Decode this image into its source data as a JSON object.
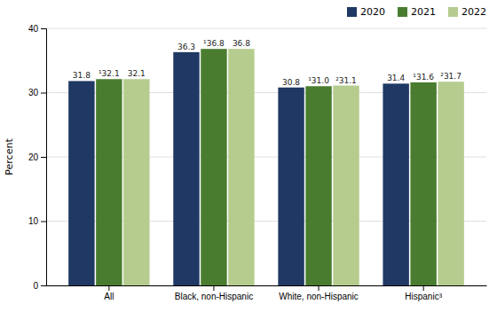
{
  "chart_data": {
    "type": "bar",
    "categories": [
      "All",
      "Black, non-Hispanic",
      "White, non-Hispanic",
      "Hispanic³"
    ],
    "series": [
      {
        "name": "2020",
        "color": "#1f3864",
        "values": [
          31.8,
          36.3,
          30.8,
          31.4
        ]
      },
      {
        "name": "2021",
        "color": "#4a7c2f",
        "values": [
          32.1,
          36.8,
          31.0,
          31.6
        ],
        "value_labels": [
          "¹32.1",
          "¹36.8",
          "¹31.0",
          "¹31.6"
        ]
      },
      {
        "name": "2022",
        "color": "#b5cc8e",
        "values": [
          32.1,
          36.8,
          31.1,
          31.7
        ],
        "value_labels": [
          "32.1",
          "36.8",
          "²31.1",
          "²31.7"
        ]
      }
    ],
    "y_label": "Percent",
    "ylim": [
      0,
      40
    ],
    "yticks": [
      0,
      10,
      20,
      30,
      40
    ],
    "grid": true,
    "legend": "upper right",
    "data_labels": true
  }
}
